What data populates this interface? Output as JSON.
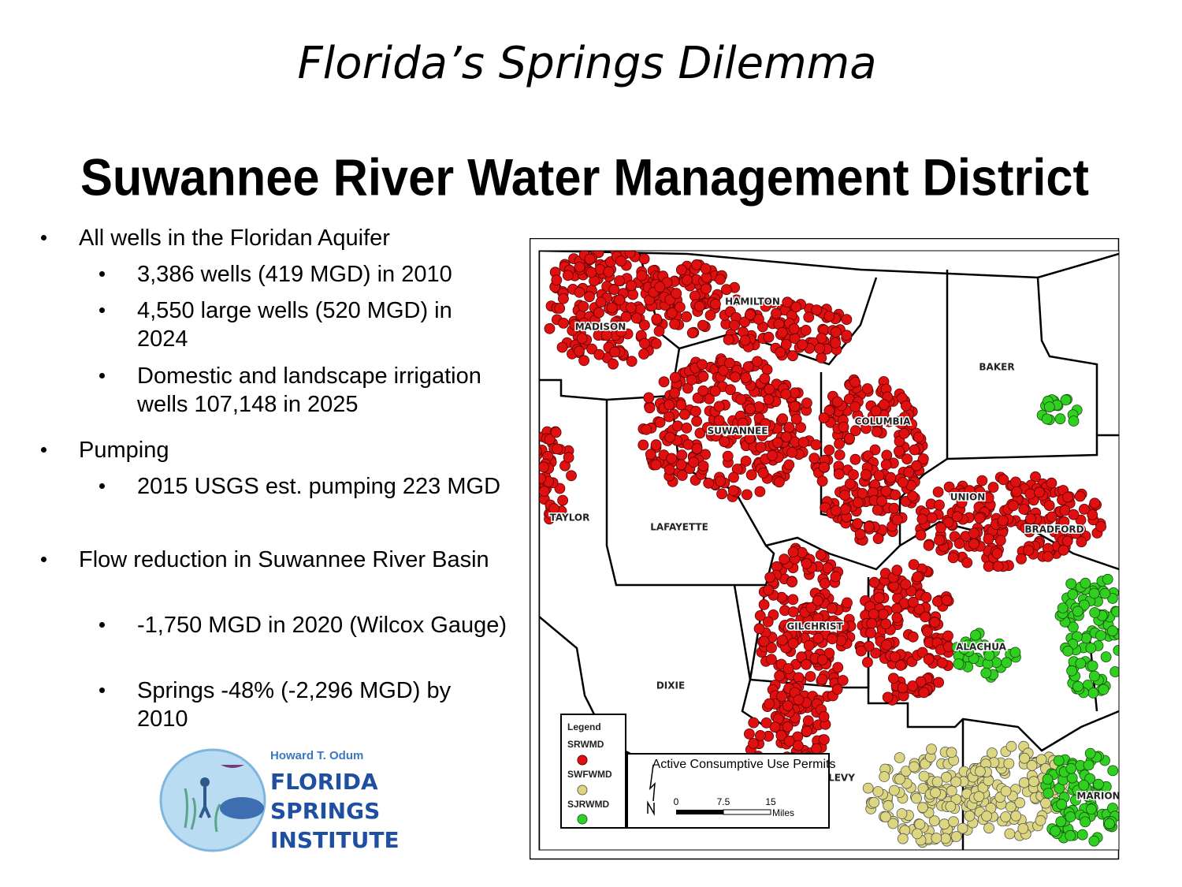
{
  "header": {
    "title": "Florida’s Springs Dilemma",
    "subtitle": "Suwannee River Water Management District"
  },
  "bullets": [
    {
      "text": "All wells in the Floridan Aquifer",
      "sub": [
        "3,386 wells (419 MGD) in 2010",
        "4,550 large wells (520 MGD) in 2024",
        "Domestic and landscape irrigation wells 107,148 in 2025"
      ]
    },
    {
      "text": "Pumping",
      "sub": [
        "2015 USGS est. pumping 223 MGD"
      ]
    },
    {
      "text": "Flow reduction in Suwannee River Basin",
      "sub": [
        "-1,750 MGD in 2020 (Wilcox Gauge)",
        "Springs -48% (-2,296 MGD) by 2010"
      ]
    }
  ],
  "map": {
    "counties": [
      "HAMILTON",
      "MADISON",
      "BAKER",
      "SUWANNEE",
      "COLUMBIA",
      "UNION",
      "TAYLOR",
      "LAFAYETTE",
      "BRADFORD",
      "GILCHRIST",
      "ALACHUA",
      "DIXIE",
      "LEVY",
      "MARION"
    ],
    "legend": {
      "title": "Legend",
      "items": [
        "SRWMD",
        "SWFWMD",
        "SJRWMD"
      ]
    },
    "scale": {
      "title": "Active Consumptive Use Permits",
      "ticks": [
        0,
        7.5,
        15
      ],
      "unit": "Miles"
    }
  },
  "logo": {
    "name": "Howard T. Odum",
    "lines": [
      "FLORIDA",
      "SPRINGS",
      "INSTITUTE"
    ]
  }
}
